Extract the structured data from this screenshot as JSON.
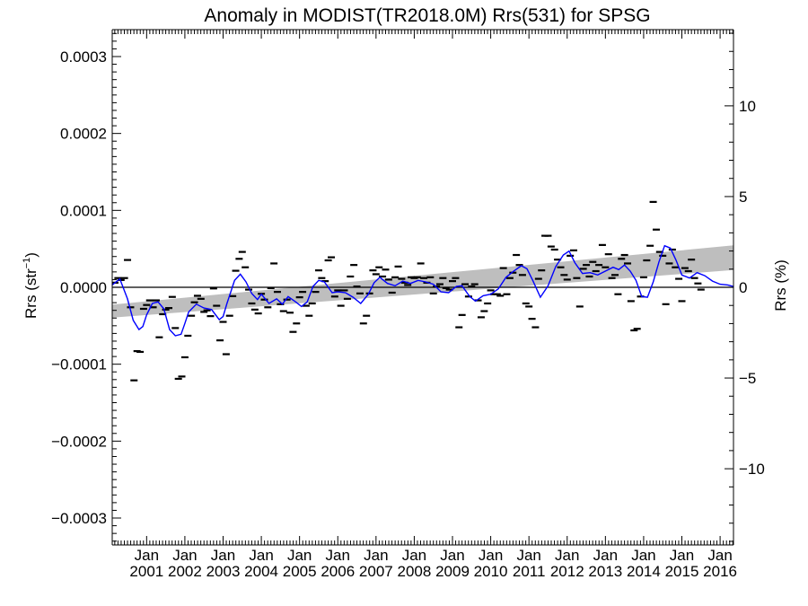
{
  "chart_data": {
    "type": "line",
    "title": "Anomaly in MODIST(TR2018.0M) Rrs(531) for SPSG",
    "ylabel_left": "Rrs (str",
    "ylabel_left_superscript": "−1",
    "ylabel_left_suffix": ")",
    "ylabel_right": "Rrs (%)",
    "ylim": [
      -0.000335,
      0.000335
    ],
    "y2lim": [
      -14.2,
      14.2
    ],
    "xlim": [
      2000.1,
      2016.35
    ],
    "y_ticks": [
      {
        "value": 0.0003,
        "label": "0.0003"
      },
      {
        "value": 0.0002,
        "label": "0.0002"
      },
      {
        "value": 0.0001,
        "label": "0.0001"
      },
      {
        "value": 0.0,
        "label": "0.0000"
      },
      {
        "value": -0.0001,
        "label": "−0.0001"
      },
      {
        "value": -0.0002,
        "label": "−0.0002"
      },
      {
        "value": -0.0003,
        "label": "−0.0003"
      }
    ],
    "y2_ticks": [
      {
        "value": 10,
        "label": "10"
      },
      {
        "value": 5,
        "label": "5"
      },
      {
        "value": 0,
        "label": "0"
      },
      {
        "value": -5,
        "label": "−5"
      },
      {
        "value": -10,
        "label": "−10"
      }
    ],
    "x_ticks": [
      {
        "value": 2001,
        "month": "Jan",
        "year": "2001"
      },
      {
        "value": 2002,
        "month": "Jan",
        "year": "2002"
      },
      {
        "value": 2003,
        "month": "Jan",
        "year": "2003"
      },
      {
        "value": 2004,
        "month": "Jan",
        "year": "2004"
      },
      {
        "value": 2005,
        "month": "Jan",
        "year": "2005"
      },
      {
        "value": 2006,
        "month": "Jan",
        "year": "2006"
      },
      {
        "value": 2007,
        "month": "Jan",
        "year": "2007"
      },
      {
        "value": 2008,
        "month": "Jan",
        "year": "2008"
      },
      {
        "value": 2009,
        "month": "Jan",
        "year": "2009"
      },
      {
        "value": 2010,
        "month": "Jan",
        "year": "2010"
      },
      {
        "value": 2011,
        "month": "Jan",
        "year": "2011"
      },
      {
        "value": 2012,
        "month": "Jan",
        "year": "2012"
      },
      {
        "value": 2013,
        "month": "Jan",
        "year": "2013"
      },
      {
        "value": 2014,
        "month": "Jan",
        "year": "2014"
      },
      {
        "value": 2015,
        "month": "Jan",
        "year": "2015"
      },
      {
        "value": 2016,
        "month": "Jan",
        "year": "2016"
      }
    ],
    "trend_band": {
      "x": [
        2000.1,
        2016.35
      ],
      "lower": [
        -3.95e-05,
        2.25e-05
      ],
      "upper": [
        -2.25e-05,
        5.45e-05
      ],
      "color": "#bebebe"
    },
    "zero_line": 0,
    "series": [
      {
        "marker": "dash",
        "color": "#000000",
        "points": [
          [
            2000.17,
            6e-06
          ],
          [
            2000.25,
            1.2e-05
          ],
          [
            2000.33,
            9.5e-06
          ],
          [
            2000.42,
            1.2e-05
          ],
          [
            2000.5,
            3.55e-05
          ],
          [
            2000.58,
            -2.6e-05
          ],
          [
            2000.67,
            -0.000121
          ],
          [
            2000.75,
            -8.3e-05
          ],
          [
            2000.83,
            -8.4e-05
          ],
          [
            2000.92,
            -2.8e-05
          ],
          [
            2001.0,
            -2.3e-05
          ],
          [
            2001.08,
            -1.7e-05
          ],
          [
            2001.17,
            -2.6e-05
          ],
          [
            2001.25,
            -1.7e-05
          ],
          [
            2001.33,
            -6.5e-05
          ],
          [
            2001.42,
            -3.5e-05
          ],
          [
            2001.5,
            -2.9e-05
          ],
          [
            2001.58,
            -2.7e-05
          ],
          [
            2001.67,
            -1.25e-05
          ],
          [
            2001.75,
            -5.3e-05
          ],
          [
            2001.83,
            -0.000119
          ],
          [
            2001.92,
            -0.000116
          ],
          [
            2002.0,
            -9.1e-05
          ],
          [
            2002.08,
            -6.3e-05
          ],
          [
            2002.17,
            -3.7e-05
          ],
          [
            2002.25,
            -1.95e-05
          ],
          [
            2002.33,
            -1.1e-05
          ],
          [
            2002.42,
            -1.5e-05
          ],
          [
            2002.5,
            -3.2e-05
          ],
          [
            2002.58,
            -3e-05
          ],
          [
            2002.67,
            -3.75e-05
          ],
          [
            2002.75,
            -1.5e-06
          ],
          [
            2002.83,
            -2.4e-05
          ],
          [
            2002.92,
            -6.9e-05
          ],
          [
            2003.0,
            -4.5e-05
          ],
          [
            2003.08,
            -8.7e-05
          ],
          [
            2003.17,
            -3.7e-05
          ],
          [
            2003.25,
            -1.15e-05
          ],
          [
            2003.33,
            2.15e-05
          ],
          [
            2003.42,
            3.7e-05
          ],
          [
            2003.5,
            4.6e-05
          ],
          [
            2003.58,
            2.6e-05
          ],
          [
            2003.67,
            -3e-06
          ],
          [
            2003.75,
            -2.1e-05
          ],
          [
            2003.83,
            -2.9e-05
          ],
          [
            2003.92,
            -3.4e-05
          ],
          [
            2004.0,
            -8.5e-06
          ],
          [
            2004.08,
            -1.6e-05
          ],
          [
            2004.17,
            -2.6e-05
          ],
          [
            2004.25,
            -1e-06
          ],
          [
            2004.33,
            3.1e-05
          ],
          [
            2004.42,
            -6e-06
          ],
          [
            2004.5,
            -2.2e-05
          ],
          [
            2004.58,
            -3.1e-05
          ],
          [
            2004.67,
            -1.6e-05
          ],
          [
            2004.75,
            -3.3e-05
          ],
          [
            2004.83,
            -5.8e-05
          ],
          [
            2004.92,
            -4.7e-05
          ],
          [
            2005.0,
            -1.3e-05
          ],
          [
            2005.08,
            -6e-06
          ],
          [
            2005.17,
            -2.4e-05
          ],
          [
            2005.25,
            -3.7e-05
          ],
          [
            2005.33,
            -2.1e-05
          ],
          [
            2005.42,
            -6e-06
          ],
          [
            2005.5,
            2.2e-05
          ],
          [
            2005.58,
            1.2e-05
          ],
          [
            2005.67,
            8e-06
          ],
          [
            2005.75,
            3.5e-05
          ],
          [
            2005.83,
            3.9e-05
          ],
          [
            2005.92,
            -1.2e-05
          ],
          [
            2006.0,
            -4e-06
          ],
          [
            2006.08,
            -2.4e-05
          ],
          [
            2006.17,
            -4e-06
          ],
          [
            2006.25,
            -1.5e-05
          ],
          [
            2006.33,
            1.4e-05
          ],
          [
            2006.42,
            2.9e-05
          ],
          [
            2006.5,
            1e-06
          ],
          [
            2006.58,
            -8e-06
          ],
          [
            2006.67,
            -4.7e-05
          ],
          [
            2006.75,
            -3.7e-05
          ],
          [
            2006.83,
            -8e-06
          ],
          [
            2006.92,
            2.2e-05
          ],
          [
            2007.0,
            1.7e-05
          ],
          [
            2007.08,
            2.6e-05
          ],
          [
            2007.17,
            1.4e-05
          ],
          [
            2007.25,
            2.3e-05
          ],
          [
            2007.33,
            1e-05
          ],
          [
            2007.42,
            -7e-06
          ],
          [
            2007.5,
            1.3e-05
          ],
          [
            2007.58,
            2.7e-05
          ],
          [
            2007.67,
            1.1e-05
          ],
          [
            2007.75,
            6e-06
          ],
          [
            2007.83,
            3e-06
          ],
          [
            2007.92,
            1.3e-05
          ],
          [
            2008.0,
            1.2e-05
          ],
          [
            2008.08,
            1.3e-05
          ],
          [
            2008.17,
            3.1e-05
          ],
          [
            2008.25,
            1.2e-05
          ],
          [
            2008.33,
            6e-06
          ],
          [
            2008.42,
            1.3e-05
          ],
          [
            2008.5,
            -8e-06
          ],
          [
            2008.58,
            1e-06
          ],
          [
            2008.67,
            4e-06
          ],
          [
            2008.75,
            1.2e-05
          ],
          [
            2008.83,
            -1e-06
          ],
          [
            2008.92,
            -3e-06
          ],
          [
            2009.0,
            8e-06
          ],
          [
            2009.08,
            1.2e-05
          ],
          [
            2009.17,
            -5.2e-05
          ],
          [
            2009.25,
            -3.6e-05
          ],
          [
            2009.33,
            4e-06
          ],
          [
            2009.42,
            -1.2e-05
          ],
          [
            2009.5,
            1e-06
          ],
          [
            2009.58,
            4e-06
          ],
          [
            2009.67,
            -1.7e-05
          ],
          [
            2009.75,
            -3.9e-05
          ],
          [
            2009.83,
            -3.1e-05
          ],
          [
            2009.92,
            -2.1e-05
          ],
          [
            2010.0,
            -4e-06
          ],
          [
            2010.08,
            -9e-06
          ],
          [
            2010.17,
            -9e-06
          ],
          [
            2010.25,
            -1.1e-05
          ],
          [
            2010.33,
            2.5e-05
          ],
          [
            2010.42,
            -9e-06
          ],
          [
            2010.5,
            1.2e-05
          ],
          [
            2010.58,
            1.9e-05
          ],
          [
            2010.67,
            4.2e-05
          ],
          [
            2010.75,
            2.9e-05
          ],
          [
            2010.83,
            1.6e-05
          ],
          [
            2010.92,
            -2.1e-05
          ],
          [
            2011.0,
            -2.5e-05
          ],
          [
            2011.08,
            -4.1e-05
          ],
          [
            2011.17,
            -5.2e-05
          ],
          [
            2011.25,
            1.1e-05
          ],
          [
            2011.33,
            2.2e-05
          ],
          [
            2011.42,
            6.7e-05
          ],
          [
            2011.5,
            6.7e-05
          ],
          [
            2011.58,
            5.3e-05
          ],
          [
            2011.67,
            4.9e-05
          ],
          [
            2011.75,
            3.6e-05
          ],
          [
            2011.83,
            2.6e-05
          ],
          [
            2011.92,
            1.6e-05
          ],
          [
            2012.0,
            1e-05
          ],
          [
            2012.08,
            4.1e-05
          ],
          [
            2012.17,
            4.8e-05
          ],
          [
            2012.25,
            1.2e-05
          ],
          [
            2012.33,
            -2.5e-05
          ],
          [
            2012.42,
            2.4e-05
          ],
          [
            2012.5,
            2.9e-05
          ],
          [
            2012.58,
            1.4e-05
          ],
          [
            2012.67,
            3.3e-05
          ],
          [
            2012.75,
            2.1e-05
          ],
          [
            2012.83,
            2.9e-05
          ],
          [
            2012.92,
            5.5e-05
          ],
          [
            2013.0,
            2.6e-05
          ],
          [
            2013.08,
            4.3e-05
          ],
          [
            2013.17,
            1.2e-05
          ],
          [
            2013.25,
            1.6e-05
          ],
          [
            2013.33,
            -9e-06
          ],
          [
            2013.42,
            3.7e-05
          ],
          [
            2013.5,
            4.2e-05
          ],
          [
            2013.58,
            3.1e-05
          ],
          [
            2013.67,
            -1.8e-05
          ],
          [
            2013.75,
            -5.6e-05
          ],
          [
            2013.83,
            -5.4e-05
          ],
          [
            2013.92,
            -1.2e-05
          ],
          [
            2014.0,
            1.3e-05
          ],
          [
            2014.08,
            3.5e-05
          ],
          [
            2014.17,
            5.4e-05
          ],
          [
            2014.25,
            0.000111
          ],
          [
            2014.33,
            7.5e-05
          ],
          [
            2014.42,
            4.6e-05
          ],
          [
            2014.5,
            4.1e-05
          ],
          [
            2014.58,
            -2.2e-05
          ],
          [
            2014.67,
            3.1e-05
          ],
          [
            2014.75,
            4.9e-05
          ],
          [
            2014.83,
            2.6e-05
          ],
          [
            2014.92,
            1.1e-05
          ],
          [
            2015.0,
            -1.8e-05
          ],
          [
            2015.08,
            2.5e-05
          ],
          [
            2015.17,
            2.1e-05
          ],
          [
            2015.25,
            3.6e-05
          ],
          [
            2015.33,
            1.2e-05
          ],
          [
            2015.42,
            5e-06
          ],
          [
            2015.5,
            -3e-06
          ]
        ]
      },
      {
        "marker": "line",
        "color": "#0000ff",
        "x": [
          2000.1,
          2000.3,
          2000.5,
          2000.65,
          2000.8,
          2000.9,
          2001.0,
          2001.15,
          2001.3,
          2001.45,
          2001.6,
          2001.75,
          2001.9,
          2002.0,
          2002.1,
          2002.3,
          2002.5,
          2002.7,
          2002.9,
          2003.0,
          2003.1,
          2003.3,
          2003.45,
          2003.6,
          2003.75,
          2003.9,
          2004.0,
          2004.2,
          2004.4,
          2004.55,
          2004.7,
          2004.9,
          2005.05,
          2005.2,
          2005.35,
          2005.5,
          2005.65,
          2005.85,
          2006.0,
          2006.2,
          2006.4,
          2006.6,
          2006.8,
          2006.95,
          2007.1,
          2007.3,
          2007.5,
          2007.7,
          2007.9,
          2008.1,
          2008.3,
          2008.5,
          2008.7,
          2008.9,
          2009.1,
          2009.25,
          2009.45,
          2009.6,
          2009.8,
          2010.0,
          2010.2,
          2010.4,
          2010.6,
          2010.8,
          2010.95,
          2011.1,
          2011.3,
          2011.5,
          2011.7,
          2011.9,
          2012.05,
          2012.2,
          2012.4,
          2012.6,
          2012.8,
          2013.0,
          2013.2,
          2013.35,
          2013.5,
          2013.65,
          2013.8,
          2013.95,
          2014.1,
          2014.25,
          2014.4,
          2014.55,
          2014.7,
          2014.85,
          2015.0,
          2015.2,
          2015.4,
          2015.6,
          2015.8,
          2016.0,
          2016.2,
          2016.35
        ],
        "y": [
          3e-06,
          1.1e-05,
          -1.5e-05,
          -4.3e-05,
          -5.5e-05,
          -5.1e-05,
          -3.6e-05,
          -2.1e-05,
          -1.9e-05,
          -2.8e-05,
          -5.5e-05,
          -6.3e-05,
          -6.1e-05,
          -4.7e-05,
          -3.2e-05,
          -2.2e-05,
          -2.7e-05,
          -2.9e-05,
          -4.2e-05,
          -3.8e-05,
          -2.1e-05,
          9e-06,
          1.7e-05,
          7e-06,
          -8e-06,
          -1.6e-05,
          -9e-06,
          -2.1e-05,
          -1.5e-05,
          -2.2e-05,
          -1.2e-05,
          -1.9e-05,
          -2.5e-05,
          -1.9e-05,
          1e-06,
          9e-06,
          7e-06,
          -7e-06,
          -6e-06,
          -7e-06,
          -1.3e-05,
          -2.1e-05,
          -9e-06,
          6e-06,
          1.3e-05,
          5e-06,
          2e-06,
          8e-06,
          5e-06,
          9e-06,
          7e-06,
          4e-06,
          -6e-06,
          -7e-06,
          1e-06,
          2e-06,
          -1.2e-05,
          -1.8e-05,
          -1.1e-05,
          -9e-06,
          -2e-06,
          1.3e-05,
          2.1e-05,
          2.8e-05,
          2.4e-05,
          9e-06,
          -1.3e-05,
          2e-06,
          2.7e-05,
          4.2e-05,
          4.7e-05,
          3.2e-05,
          1.8e-05,
          1.9e-05,
          1.6e-05,
          2.1e-05,
          2.6e-05,
          2.3e-05,
          2.9e-05,
          2.1e-05,
          9e-06,
          -1.2e-05,
          -1.3e-05,
          7e-06,
          3.3e-05,
          5.4e-05,
          5.1e-05,
          3.5e-05,
          1.6e-05,
          1.2e-05,
          1.9e-05,
          1.5e-05,
          8e-06,
          4e-06,
          3e-06,
          1e-06
        ]
      }
    ]
  }
}
